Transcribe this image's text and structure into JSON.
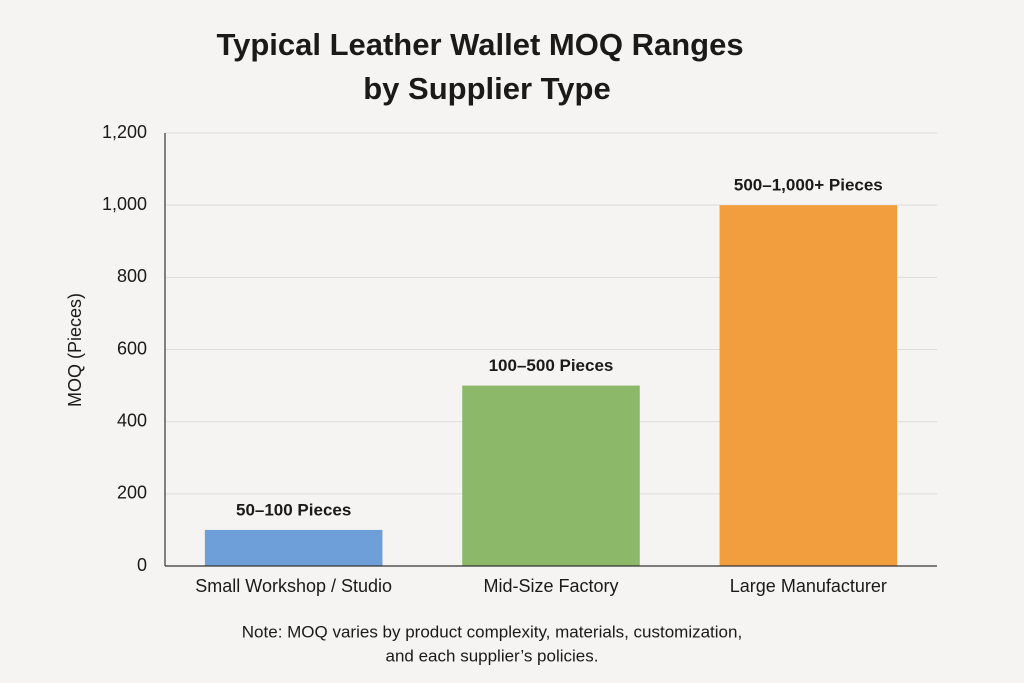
{
  "chart_data": {
    "type": "bar",
    "title": [
      "Typical Leather Wallet MOQ Ranges",
      "by Supplier Type"
    ],
    "y_label": "MOQ (Pieces)",
    "categories": [
      "Small Workshop / Studio",
      "Mid-Size Factory",
      "Large Manufacturer"
    ],
    "values": [
      100,
      500,
      1000
    ],
    "value_labels": [
      "50–100 Pieces",
      "100–500 Pieces",
      "500–1,000+ Pieces"
    ],
    "colors": [
      "#6f9fd8",
      "#8cb86a",
      "#f29d3e"
    ],
    "ylim": [
      0,
      1200
    ],
    "yticks": [
      0,
      200,
      400,
      600,
      800,
      {
        "value": 1000,
        "label": "1,000"
      },
      {
        "value": 1200,
        "label": "1,200"
      }
    ],
    "grid": true,
    "note": [
      "Note: MOQ varies by product complexity, materials, customization,",
      "and each supplier’s policies."
    ]
  }
}
